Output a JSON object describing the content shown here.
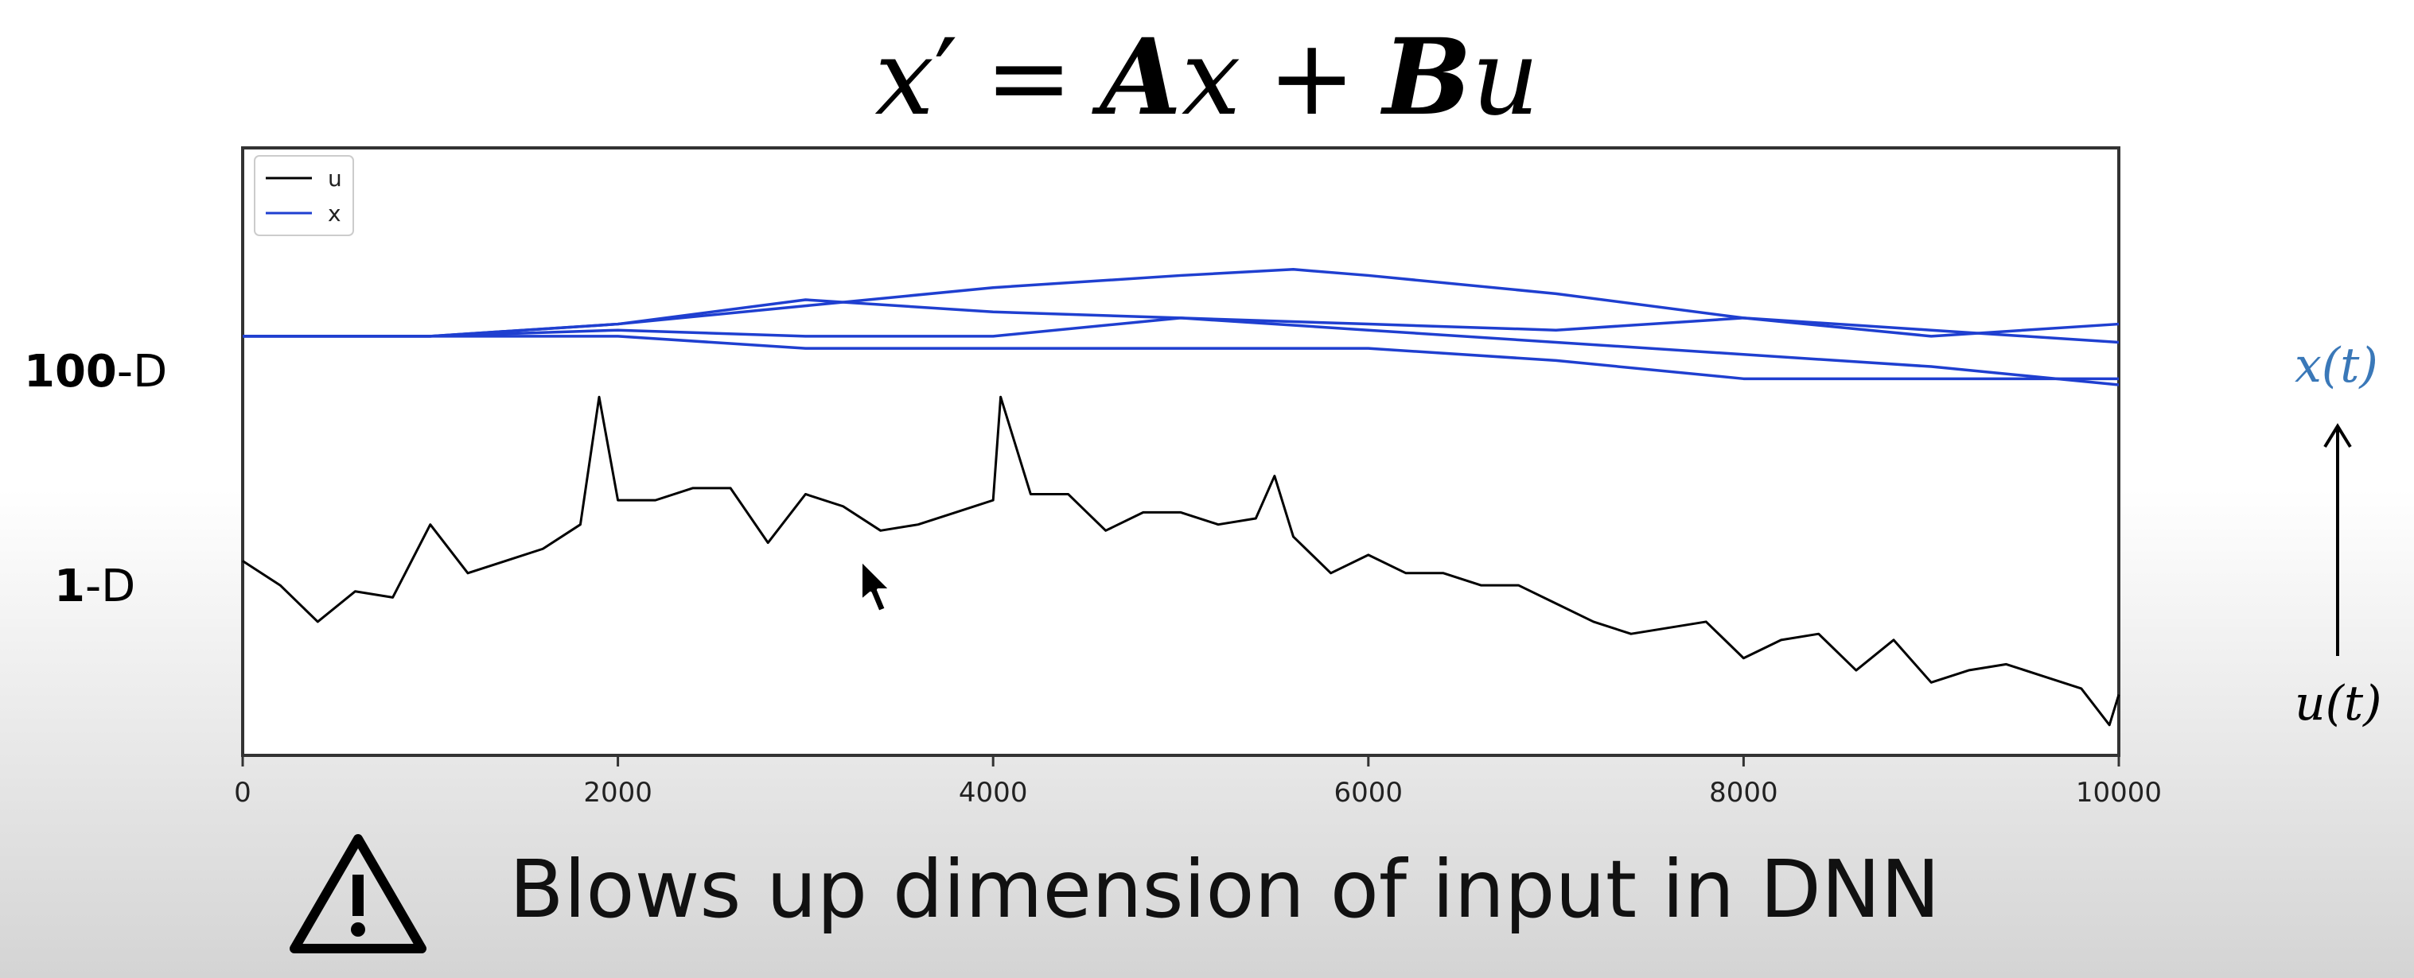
{
  "equation": {
    "lhs": "x",
    "prime": "′",
    "eq": "=",
    "A": "A",
    "x": "x",
    "plus": "+",
    "B": "B",
    "u": "u"
  },
  "labels": {
    "dim_high_num": "100",
    "dim_high_suffix": "-D",
    "dim_low_num": "1",
    "dim_low_suffix": "-D",
    "x_of_t": "x(t)",
    "u_of_t": "u(t)"
  },
  "colors": {
    "u_series": "#000000",
    "x_series": "#1f3fd0",
    "x_label": "#3a78b8"
  },
  "warning": {
    "icon": "warning-triangle-icon",
    "text": "Blows up dimension of input in DNN"
  },
  "chart_data": {
    "type": "line",
    "xlim": [
      0,
      10000
    ],
    "x_ticks": [
      "0",
      "2000",
      "4000",
      "6000",
      "8000",
      "10000"
    ],
    "x_tick_values": [
      0,
      2000,
      4000,
      6000,
      8000,
      10000
    ],
    "ylim": [
      0,
      1
    ],
    "legend": {
      "placement": "top-left",
      "entries": [
        "u",
        "x"
      ]
    },
    "grid": false,
    "series": [
      {
        "name": "u",
        "x": [
          0,
          200,
          400,
          600,
          800,
          1000,
          1200,
          1400,
          1600,
          1800,
          1900,
          2000,
          2200,
          2400,
          2600,
          2800,
          3000,
          3200,
          3400,
          3600,
          3800,
          4000,
          4040,
          4200,
          4400,
          4600,
          4800,
          5000,
          5200,
          5400,
          5500,
          5600,
          5800,
          6000,
          6200,
          6400,
          6600,
          6800,
          7000,
          7200,
          7400,
          7600,
          7800,
          8000,
          8200,
          8400,
          8600,
          8800,
          9000,
          9200,
          9400,
          9600,
          9800,
          9950,
          10000
        ],
        "y": [
          0.32,
          0.28,
          0.22,
          0.27,
          0.26,
          0.38,
          0.3,
          0.32,
          0.34,
          0.38,
          0.59,
          0.42,
          0.42,
          0.44,
          0.44,
          0.35,
          0.43,
          0.41,
          0.37,
          0.38,
          0.4,
          0.42,
          0.59,
          0.43,
          0.43,
          0.37,
          0.4,
          0.4,
          0.38,
          0.39,
          0.46,
          0.36,
          0.3,
          0.33,
          0.3,
          0.3,
          0.28,
          0.28,
          0.25,
          0.22,
          0.2,
          0.21,
          0.22,
          0.16,
          0.19,
          0.2,
          0.14,
          0.19,
          0.12,
          0.14,
          0.15,
          0.13,
          0.11,
          0.05,
          0.1
        ]
      },
      {
        "name": "x",
        "x": [
          0,
          1000,
          2000,
          3000,
          4000,
          5000,
          5600,
          6000,
          7000,
          8000,
          9000,
          10000
        ],
        "y": [
          0.69,
          0.69,
          0.71,
          0.74,
          0.77,
          0.79,
          0.8,
          0.79,
          0.76,
          0.72,
          0.69,
          0.71
        ]
      },
      {
        "name": "x",
        "x": [
          0,
          1000,
          2000,
          3000,
          4000,
          5000,
          6000,
          7000,
          8000,
          9000,
          10000
        ],
        "y": [
          0.69,
          0.69,
          0.71,
          0.75,
          0.73,
          0.72,
          0.71,
          0.7,
          0.72,
          0.7,
          0.68
        ]
      },
      {
        "name": "x",
        "x": [
          0,
          1000,
          2000,
          3000,
          4000,
          5000,
          6000,
          7000,
          8000,
          9000,
          10000
        ],
        "y": [
          0.69,
          0.69,
          0.7,
          0.69,
          0.69,
          0.72,
          0.7,
          0.68,
          0.66,
          0.64,
          0.61
        ]
      },
      {
        "name": "x",
        "x": [
          0,
          1000,
          2000,
          3000,
          4000,
          5000,
          6000,
          7000,
          8000,
          9000,
          10000
        ],
        "y": [
          0.69,
          0.69,
          0.69,
          0.67,
          0.67,
          0.67,
          0.67,
          0.65,
          0.62,
          0.62,
          0.62
        ]
      }
    ]
  }
}
